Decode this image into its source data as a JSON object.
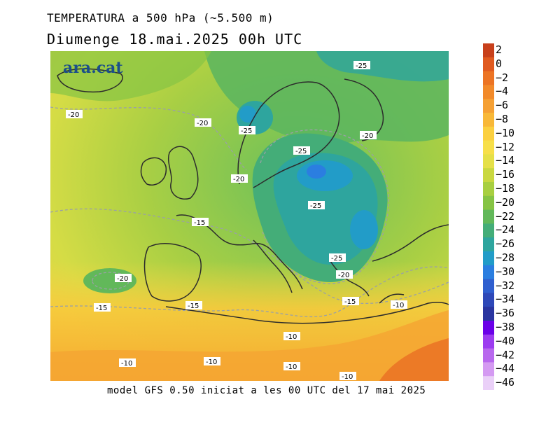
{
  "header": {
    "title": "TEMPERATURA a 500 hPa (~5.500 m)",
    "subtitle": "Diumenge  18.mai.2025 00h UTC"
  },
  "footer": {
    "text": "model GFS 0.50 iniciat a les 00 UTC del 17 mai 2025"
  },
  "logo": {
    "text": "ara.cat"
  },
  "map": {
    "contour_labels": [
      {
        "id": "c1",
        "text": "-25"
      },
      {
        "id": "c2",
        "text": "-20"
      },
      {
        "id": "c3",
        "text": "-20"
      },
      {
        "id": "c4",
        "text": "-25"
      },
      {
        "id": "c5",
        "text": "-20"
      },
      {
        "id": "c6",
        "text": "-25"
      },
      {
        "id": "c7",
        "text": "-20"
      },
      {
        "id": "c8",
        "text": "-25"
      },
      {
        "id": "c9",
        "text": "-15"
      },
      {
        "id": "c10",
        "text": "-25"
      },
      {
        "id": "c11",
        "text": "-20"
      },
      {
        "id": "c12",
        "text": "-20"
      },
      {
        "id": "c13",
        "text": "-15"
      },
      {
        "id": "c14",
        "text": "-15"
      },
      {
        "id": "c15",
        "text": "-15"
      },
      {
        "id": "c16",
        "text": "-10"
      },
      {
        "id": "c17",
        "text": "-10"
      },
      {
        "id": "c18",
        "text": "-10"
      },
      {
        "id": "c19",
        "text": "-10"
      },
      {
        "id": "c20",
        "text": "-10"
      },
      {
        "id": "c21",
        "text": "-10"
      }
    ]
  },
  "colorbar": {
    "labels": [
      "2",
      "0",
      "−2",
      "−4",
      "−6",
      "−8",
      "−10",
      "−12",
      "−14",
      "−16",
      "−18",
      "−20",
      "−22",
      "−24",
      "−26",
      "−28",
      "−30",
      "−32",
      "−34",
      "−36",
      "−38",
      "−40",
      "−42",
      "−44",
      "−46"
    ],
    "colors": [
      "#c8401b",
      "#e05a20",
      "#ec7424",
      "#f28a2a",
      "#f5a034",
      "#f8b838",
      "#fbd040",
      "#f7df4a",
      "#e5e048",
      "#c9d840",
      "#a8cf40",
      "#86c444",
      "#62b85a",
      "#44ad78",
      "#2ea59e",
      "#229cc8",
      "#2b7ee0",
      "#2f5fcf",
      "#2e48b8",
      "#2a35a0",
      "#6a00e8",
      "#9c3cf0",
      "#b868ee",
      "#d49af2",
      "#ead0f8"
    ]
  }
}
